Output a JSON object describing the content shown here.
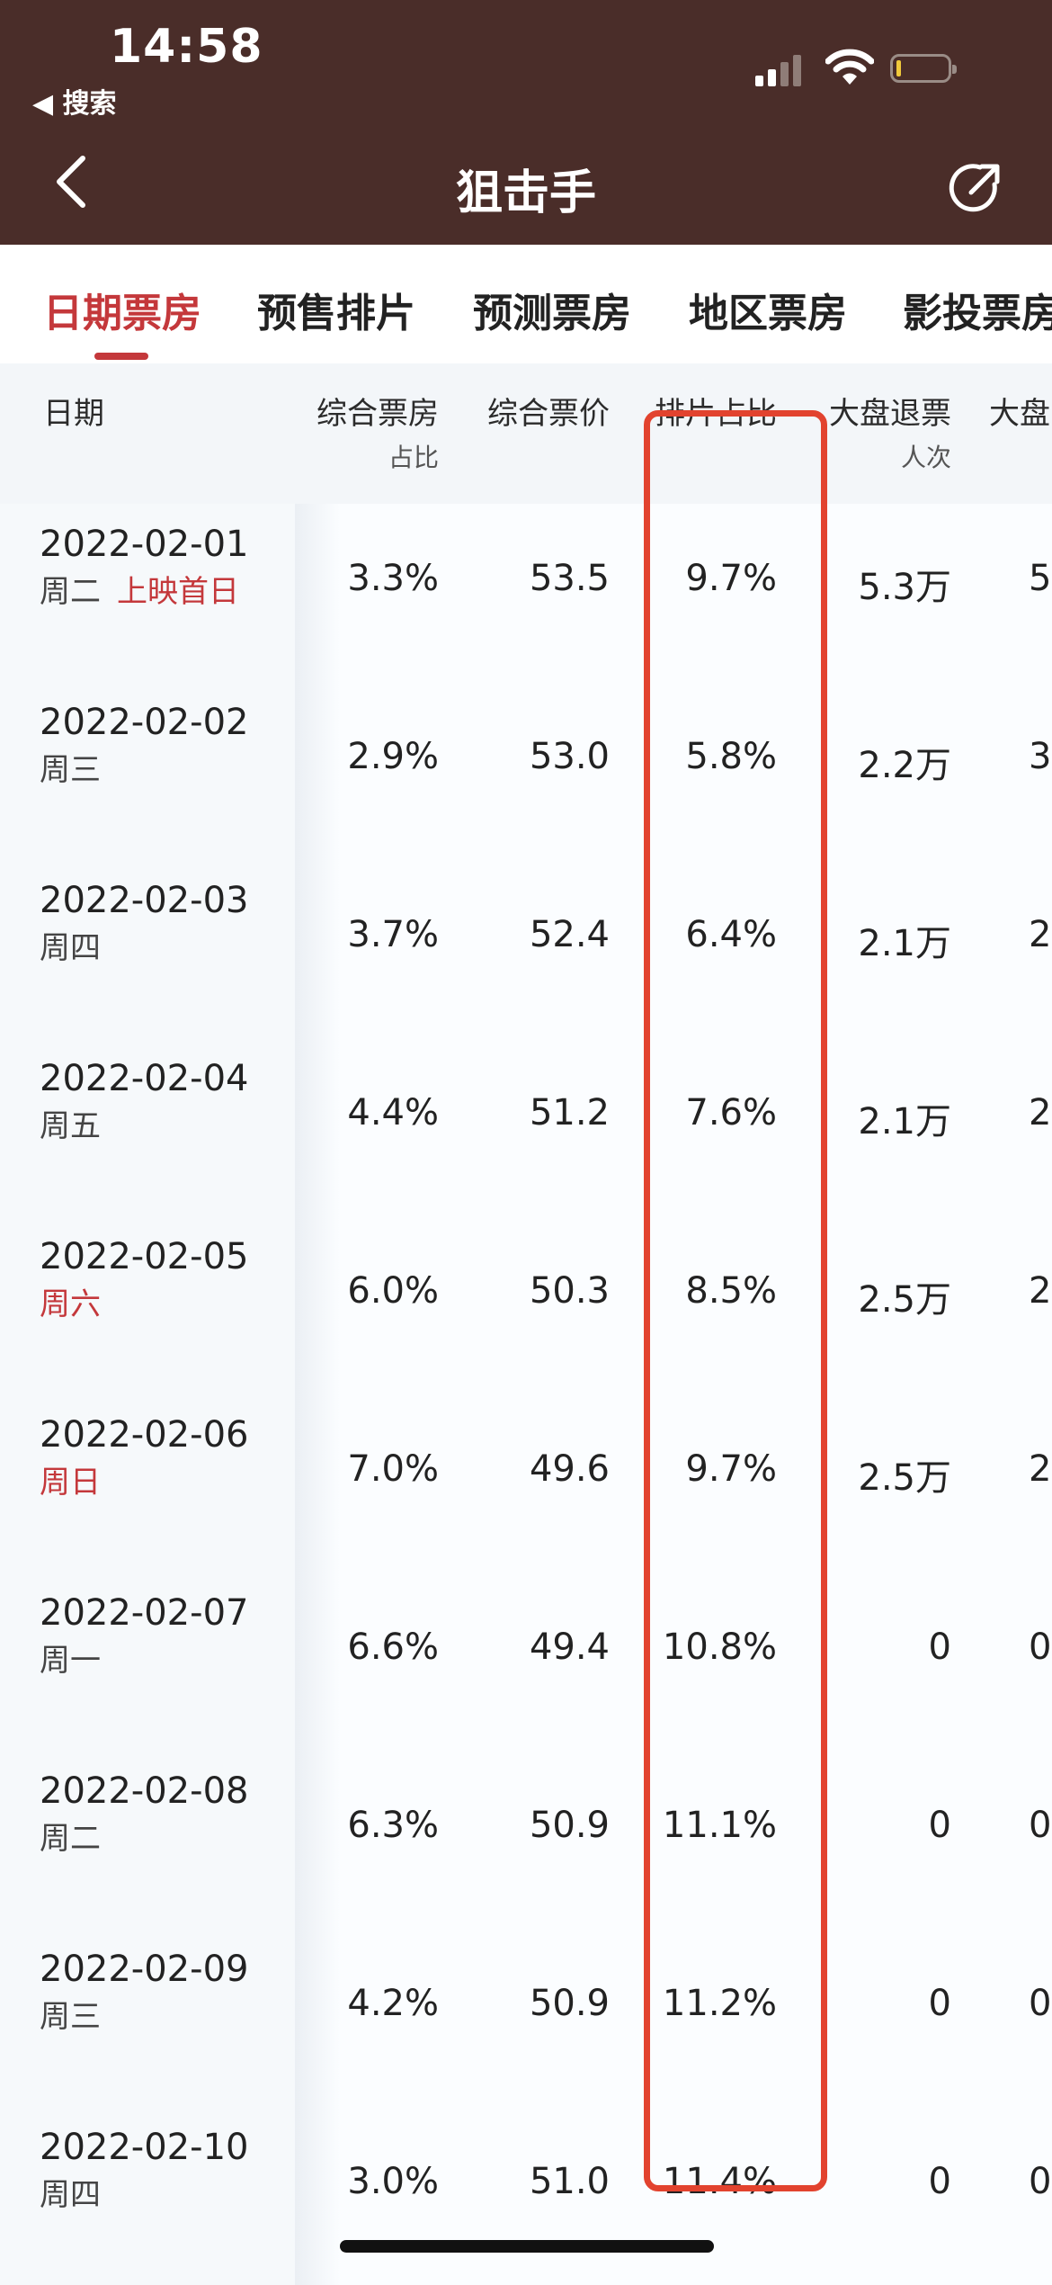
{
  "status": {
    "time": "14:58",
    "back_app": "◀ 搜索"
  },
  "nav": {
    "title": "狙击手"
  },
  "tabs": [
    {
      "label": "日期票房",
      "active": true
    },
    {
      "label": "预售排片"
    },
    {
      "label": "预测票房"
    },
    {
      "label": "地区票房"
    },
    {
      "label": "影投票房"
    }
  ],
  "table": {
    "headers": [
      {
        "label": "日期",
        "sub": ""
      },
      {
        "label": "综合票房",
        "sub": "占比"
      },
      {
        "label": "综合票价",
        "sub": ""
      },
      {
        "label": "排片占比",
        "sub": ""
      },
      {
        "label": "大盘退票",
        "sub": "人次"
      },
      {
        "label": "大盘",
        "sub": ""
      }
    ],
    "rows": [
      {
        "date": "2022-02-01",
        "weekday": "周二",
        "weekend": false,
        "tag": "上映首日",
        "share": "3.3%",
        "price": "53.5",
        "screening": "9.7%",
        "refund": "5.3万",
        "extra": "5"
      },
      {
        "date": "2022-02-02",
        "weekday": "周三",
        "weekend": false,
        "tag": "",
        "share": "2.9%",
        "price": "53.0",
        "screening": "5.8%",
        "refund": "2.2万",
        "extra": "3"
      },
      {
        "date": "2022-02-03",
        "weekday": "周四",
        "weekend": false,
        "tag": "",
        "share": "3.7%",
        "price": "52.4",
        "screening": "6.4%",
        "refund": "2.1万",
        "extra": "2"
      },
      {
        "date": "2022-02-04",
        "weekday": "周五",
        "weekend": false,
        "tag": "",
        "share": "4.4%",
        "price": "51.2",
        "screening": "7.6%",
        "refund": "2.1万",
        "extra": "2"
      },
      {
        "date": "2022-02-05",
        "weekday": "周六",
        "weekend": true,
        "tag": "",
        "share": "6.0%",
        "price": "50.3",
        "screening": "8.5%",
        "refund": "2.5万",
        "extra": "2"
      },
      {
        "date": "2022-02-06",
        "weekday": "周日",
        "weekend": true,
        "tag": "",
        "share": "7.0%",
        "price": "49.6",
        "screening": "9.7%",
        "refund": "2.5万",
        "extra": "2"
      },
      {
        "date": "2022-02-07",
        "weekday": "周一",
        "weekend": false,
        "tag": "",
        "share": "6.6%",
        "price": "49.4",
        "screening": "10.8%",
        "refund": "0",
        "extra": "0"
      },
      {
        "date": "2022-02-08",
        "weekday": "周二",
        "weekend": false,
        "tag": "",
        "share": "6.3%",
        "price": "50.9",
        "screening": "11.1%",
        "refund": "0",
        "extra": "0"
      },
      {
        "date": "2022-02-09",
        "weekday": "周三",
        "weekend": false,
        "tag": "",
        "share": "4.2%",
        "price": "50.9",
        "screening": "11.2%",
        "refund": "0",
        "extra": "0"
      },
      {
        "date": "2022-02-10",
        "weekday": "周四",
        "weekend": false,
        "tag": "",
        "share": "3.0%",
        "price": "51.0",
        "screening": "11.4%",
        "refund": "0",
        "extra": "0"
      }
    ]
  },
  "colors": {
    "header_bg": "#4a2d29",
    "accent": "#c4383b",
    "highlight": "#e2432f"
  }
}
